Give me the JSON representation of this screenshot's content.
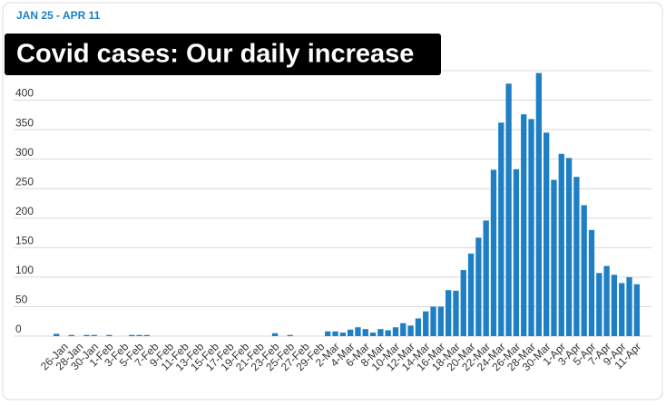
{
  "chart_data": {
    "type": "bar",
    "subtitle": "JAN 25 - APR 11",
    "title": "Covid cases: Our daily increase",
    "categories": [
      null,
      "26-Jan",
      null,
      "28-Jan",
      null,
      "30-Jan",
      null,
      "1-Feb",
      null,
      "3-Feb",
      null,
      "5-Feb",
      null,
      "7-Feb",
      null,
      "9-Feb",
      null,
      "11-Feb",
      null,
      "13-Feb",
      null,
      "15-Feb",
      null,
      "17-Feb",
      null,
      "19-Feb",
      null,
      "21-Feb",
      null,
      "23-Feb",
      null,
      "25-Feb",
      null,
      "27-Feb",
      null,
      "29-Feb",
      null,
      "2-Mar",
      null,
      "4-Mar",
      null,
      "6-Mar",
      null,
      "8-Mar",
      null,
      "10-Mar",
      null,
      "12-Mar",
      null,
      "14-Mar",
      null,
      "16-Mar",
      null,
      "18-Mar",
      null,
      "20-Mar",
      null,
      "22-Mar",
      null,
      "24-Mar",
      null,
      "26-Mar",
      null,
      "28-Mar",
      null,
      "30-Mar",
      null,
      "1-Apr",
      null,
      "3-Apr",
      null,
      "5-Apr",
      null,
      "7-Apr",
      null,
      "9-Apr",
      null,
      "11-Apr"
    ],
    "values": [
      4,
      0,
      2,
      0,
      2,
      2,
      0,
      2,
      0,
      0,
      2,
      2,
      2,
      0,
      0,
      0,
      0,
      0,
      0,
      0,
      0,
      0,
      0,
      0,
      0,
      0,
      0,
      0,
      0,
      5,
      0,
      2,
      0,
      0,
      0,
      0,
      8,
      8,
      6,
      11,
      15,
      12,
      6,
      12,
      10,
      15,
      22,
      18,
      30,
      42,
      50,
      50,
      78,
      77,
      112,
      140,
      167,
      196,
      282,
      362,
      428,
      283,
      376,
      368,
      446,
      345,
      265,
      309,
      302,
      270,
      222,
      180,
      107,
      119,
      104,
      90,
      100,
      88
    ],
    "color": "#1f7fc4",
    "ylim": [
      0,
      450
    ],
    "yticks": [
      0,
      50,
      100,
      150,
      200,
      250,
      300,
      350,
      400
    ],
    "grid": true
  }
}
